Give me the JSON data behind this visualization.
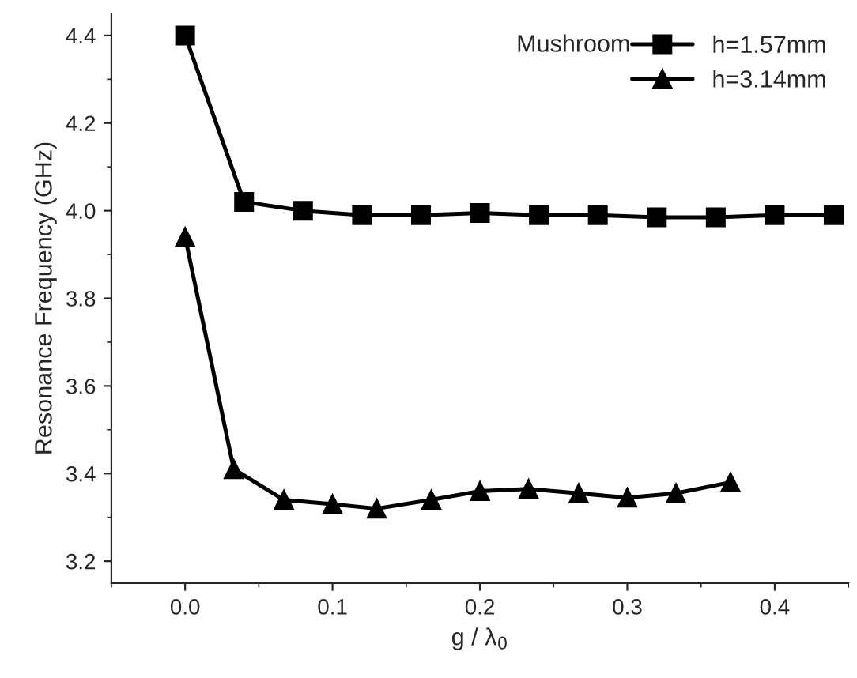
{
  "chart_data": {
    "type": "line",
    "xlabel": "g / λ$_{0}$",
    "ylabel": "Resonance Frequency (GHz)",
    "legend_title": "Mushroom",
    "legend": "top right",
    "grid": false,
    "line_style": "solid",
    "xlim": [
      -0.05,
      0.45
    ],
    "xticks": [
      {
        "value": 0,
        "label": "0.0"
      },
      0.1,
      0.2,
      0.3,
      0.4
    ],
    "ylim": [
      3.15,
      4.45
    ],
    "yticks": [
      3.2,
      3.4,
      3.6,
      3.8,
      {
        "value": 4,
        "label": "4.0"
      },
      4.2,
      4.4
    ],
    "series": [
      {
        "name": "h=1.57mm",
        "color": "#000000",
        "marker": "square",
        "x": [
          0,
          0.04,
          0.08,
          0.12,
          0.16,
          0.2,
          0.24,
          0.28,
          0.32,
          0.36,
          0.4,
          0.44
        ],
        "values": [
          4.4,
          4.02,
          4.0,
          3.99,
          3.99,
          3.995,
          3.99,
          3.99,
          3.985,
          3.985,
          3.99,
          3.99
        ]
      },
      {
        "name": "h=3.14mm",
        "color": "#000000",
        "marker": "triangle",
        "x": [
          0,
          0.033,
          0.067,
          0.1,
          0.13,
          0.167,
          0.2,
          0.233,
          0.267,
          0.3,
          0.333,
          0.37
        ],
        "values": [
          3.94,
          3.41,
          3.34,
          3.33,
          3.32,
          3.34,
          3.36,
          3.365,
          3.355,
          3.345,
          3.355,
          3.38
        ]
      }
    ]
  }
}
